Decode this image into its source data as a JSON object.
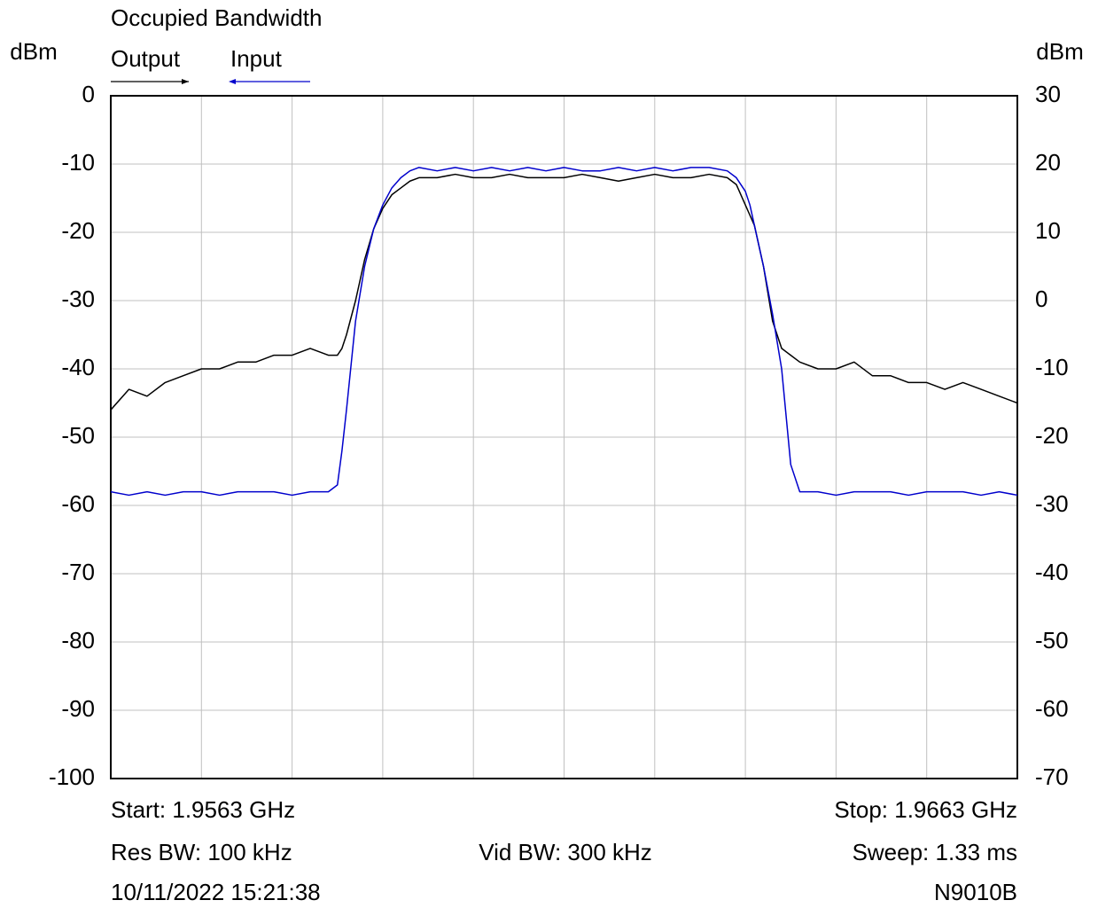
{
  "chart_data": {
    "type": "line",
    "title": "Occupied Bandwidth",
    "y_label": "dBm",
    "y2_label": "dBm",
    "annotations": {
      "start": "Start: 1.9563 GHz",
      "stop": "Stop: 1.9663 GHz",
      "res_bw": "Res BW: 100 kHz",
      "vid_bw": "Vid BW: 300 kHz",
      "sweep": "Sweep: 1.33 ms",
      "timestamp": "10/11/2022 15:21:38",
      "instrument": "N9010B"
    },
    "x": [
      1.9563,
      1.9565,
      1.9567,
      1.9569,
      1.9571,
      1.9573,
      1.9575,
      1.9577,
      1.9579,
      1.9581,
      1.9583,
      1.9585,
      1.9587,
      1.9588,
      1.95885,
      1.9589,
      1.959,
      1.9591,
      1.9592,
      1.9593,
      1.9594,
      1.9595,
      1.9596,
      1.9597,
      1.9599,
      1.9601,
      1.9603,
      1.9605,
      1.9607,
      1.9609,
      1.9611,
      1.9613,
      1.9615,
      1.9617,
      1.9619,
      1.9621,
      1.9623,
      1.9625,
      1.9627,
      1.9629,
      1.9631,
      1.9632,
      1.9633,
      1.96335,
      1.9634,
      1.96345,
      1.9635,
      1.9636,
      1.9637,
      1.9638,
      1.9639,
      1.9641,
      1.9643,
      1.9645,
      1.9647,
      1.9649,
      1.9651,
      1.9653,
      1.9655,
      1.9657,
      1.9659,
      1.9661,
      1.9663
    ],
    "series": [
      {
        "name": "Output",
        "color": "#000000",
        "axis": "y",
        "values": [
          -46,
          -43,
          -44,
          -42,
          -41,
          -40,
          -40,
          -39,
          -39,
          -38,
          -38,
          -37,
          -38,
          -38,
          -37,
          -35,
          -30,
          -24,
          -19.5,
          -16.5,
          -14.5,
          -13.5,
          -12.5,
          -12,
          -12,
          -11.5,
          -12,
          -12,
          -11.5,
          -12,
          -12,
          -12,
          -11.5,
          -12,
          -12.5,
          -12,
          -11.5,
          -12,
          -12,
          -11.5,
          -12,
          -13,
          -16,
          -17.5,
          -19,
          -22,
          -25,
          -33,
          -37,
          -38,
          -39,
          -40,
          -40,
          -39,
          -41,
          -41,
          -42,
          -42,
          -43,
          -42,
          -43,
          -44,
          -45
        ]
      },
      {
        "name": "Input",
        "color": "#0000cc",
        "axis": "y2",
        "values": [
          -28,
          -28.5,
          -28,
          -28.5,
          -28,
          -28,
          -28.5,
          -28,
          -28,
          -28,
          -28.5,
          -28,
          -28,
          -27,
          -22,
          -16,
          -3,
          5,
          10.5,
          14,
          16.5,
          18,
          19,
          19.5,
          19,
          19.5,
          19,
          19.5,
          19,
          19.5,
          19,
          19.5,
          19,
          19,
          19.5,
          19,
          19.5,
          19,
          19.5,
          19.5,
          19,
          18,
          16,
          14,
          11,
          8,
          5,
          -2,
          -10,
          -24,
          -28,
          -28,
          -28.5,
          -28,
          -28,
          -28,
          -28.5,
          -28,
          -28,
          -28,
          -28.5,
          -28,
          -28.5
        ]
      }
    ],
    "xlim": [
      1.9563,
      1.9663
    ],
    "xticks": [
      1.9563,
      1.9573,
      1.9583,
      1.9593,
      1.9603,
      1.9613,
      1.9623,
      1.9633,
      1.9643,
      1.9653,
      1.9663
    ],
    "ylim": [
      -100,
      0
    ],
    "yticks": [
      0,
      -10,
      -20,
      -30,
      -40,
      -50,
      -60,
      -70,
      -80,
      -90,
      -100
    ],
    "y2lim": [
      -70,
      30
    ],
    "y2ticks": [
      30,
      20,
      10,
      0,
      -10,
      -20,
      -30,
      -40,
      -50,
      -60,
      -70
    ],
    "grid": true
  }
}
